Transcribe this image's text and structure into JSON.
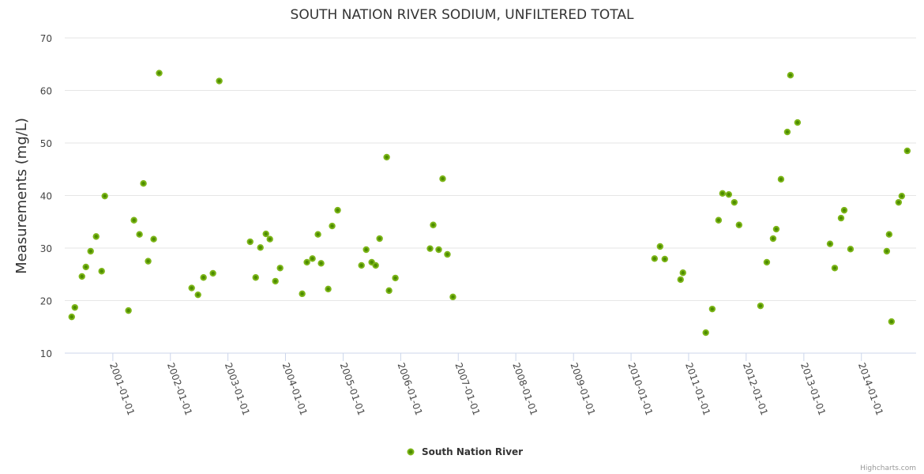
{
  "chart_data": {
    "type": "scatter",
    "title": "SOUTH NATION RIVER SODIUM, UNFILTERED TOTAL",
    "xlabel": "",
    "ylabel": "Measurements (mg/L)",
    "ylim": [
      10,
      70
    ],
    "yticks": [
      "10",
      "20",
      "30",
      "40",
      "50",
      "60",
      "70"
    ],
    "xlim": [
      "2000-03-02",
      "2014-12-14"
    ],
    "xticks": [
      "2001-01-01",
      "2002-01-01",
      "2003-01-01",
      "2004-01-01",
      "2005-01-01",
      "2006-01-01",
      "2007-01-01",
      "2008-01-01",
      "2009-01-01",
      "2010-01-01",
      "2011-01-01",
      "2012-01-01",
      "2013-01-01",
      "2014-01-01"
    ],
    "grid": true,
    "legend_position": "bottom-center",
    "series": [
      {
        "name": "South Nation River",
        "color": "#7cb518",
        "points": [
          [
            "2000-04-15",
            16.9
          ],
          [
            "2000-05-05",
            18.7
          ],
          [
            "2000-06-19",
            24.6
          ],
          [
            "2000-07-14",
            26.4
          ],
          [
            "2000-08-13",
            29.4
          ],
          [
            "2000-09-17",
            32.2
          ],
          [
            "2000-10-22",
            25.6
          ],
          [
            "2000-11-11",
            39.9
          ],
          [
            "2001-04-10",
            18.1
          ],
          [
            "2001-05-15",
            35.3
          ],
          [
            "2001-06-19",
            32.6
          ],
          [
            "2001-07-14",
            42.3
          ],
          [
            "2001-08-13",
            27.5
          ],
          [
            "2001-09-17",
            31.7
          ],
          [
            "2001-10-22",
            63.3
          ],
          [
            "2002-05-16",
            22.4
          ],
          [
            "2002-06-25",
            21.1
          ],
          [
            "2002-07-30",
            24.4
          ],
          [
            "2002-09-28",
            25.2
          ],
          [
            "2002-11-07",
            61.8
          ],
          [
            "2003-05-22",
            31.2
          ],
          [
            "2003-06-26",
            24.4
          ],
          [
            "2003-07-26",
            30.1
          ],
          [
            "2003-08-30",
            32.7
          ],
          [
            "2003-09-24",
            31.7
          ],
          [
            "2003-10-29",
            23.7
          ],
          [
            "2003-11-28",
            26.2
          ],
          [
            "2004-04-16",
            21.3
          ],
          [
            "2004-05-16",
            27.3
          ],
          [
            "2004-06-20",
            28.0
          ],
          [
            "2004-07-25",
            32.6
          ],
          [
            "2004-08-14",
            27.1
          ],
          [
            "2004-09-28",
            22.2
          ],
          [
            "2004-10-23",
            34.2
          ],
          [
            "2004-11-27",
            37.2
          ],
          [
            "2005-04-27",
            26.7
          ],
          [
            "2005-05-27",
            29.7
          ],
          [
            "2005-07-01",
            27.3
          ],
          [
            "2005-07-26",
            26.7
          ],
          [
            "2005-08-20",
            31.8
          ],
          [
            "2005-10-04",
            47.3
          ],
          [
            "2005-10-19",
            21.9
          ],
          [
            "2005-11-28",
            24.3
          ],
          [
            "2006-07-06",
            29.9
          ],
          [
            "2006-07-26",
            34.4
          ],
          [
            "2006-08-30",
            29.7
          ],
          [
            "2006-09-24",
            43.2
          ],
          [
            "2006-10-24",
            28.8
          ],
          [
            "2006-11-28",
            20.7
          ],
          [
            "2010-05-30",
            28.0
          ],
          [
            "2010-07-04",
            30.3
          ],
          [
            "2010-08-03",
            27.9
          ],
          [
            "2010-11-11",
            24.0
          ],
          [
            "2010-11-26",
            25.3
          ],
          [
            "2011-04-20",
            13.9
          ],
          [
            "2011-05-31",
            18.4
          ],
          [
            "2011-07-10",
            35.3
          ],
          [
            "2011-08-04",
            40.4
          ],
          [
            "2011-09-13",
            40.2
          ],
          [
            "2011-10-18",
            38.7
          ],
          [
            "2011-11-17",
            34.4
          ],
          [
            "2012-04-01",
            19.0
          ],
          [
            "2012-05-11",
            27.3
          ],
          [
            "2012-06-20",
            31.8
          ],
          [
            "2012-07-10",
            33.6
          ],
          [
            "2012-08-09",
            43.1
          ],
          [
            "2012-09-18",
            52.1
          ],
          [
            "2012-10-08",
            62.9
          ],
          [
            "2012-11-22",
            53.9
          ],
          [
            "2013-06-16",
            30.8
          ],
          [
            "2013-07-16",
            26.2
          ],
          [
            "2013-08-25",
            35.7
          ],
          [
            "2013-09-14",
            37.2
          ],
          [
            "2013-10-24",
            29.8
          ],
          [
            "2014-06-11",
            29.4
          ],
          [
            "2014-06-26",
            32.6
          ],
          [
            "2014-07-11",
            16.0
          ],
          [
            "2014-08-25",
            38.7
          ],
          [
            "2014-09-14",
            39.9
          ],
          [
            "2014-10-19",
            48.5
          ]
        ]
      }
    ],
    "credit": "Highcharts.com"
  }
}
